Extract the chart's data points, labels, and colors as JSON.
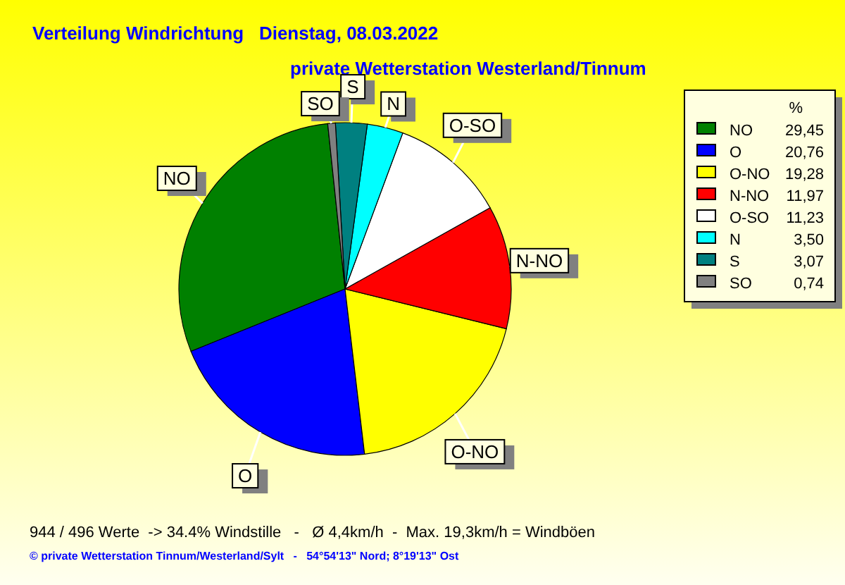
{
  "chart_data": {
    "type": "pie",
    "title": "Verteilung Windrichtung   Dienstag, 08.03.2022",
    "subtitle": "private Wetterstation Westerland/Tinnum",
    "categories": [
      "NO",
      "O",
      "O-NO",
      "N-NO",
      "O-SO",
      "N",
      "S",
      "SO"
    ],
    "values": [
      29.45,
      20.76,
      19.28,
      11.97,
      11.23,
      3.5,
      3.07,
      0.74
    ],
    "colors": [
      "#008000",
      "#0000ff",
      "#ffff00",
      "#ff0000",
      "#ffffff",
      "#00ffff",
      "#008080",
      "#808080"
    ],
    "value_labels": [
      "29,45",
      "20,76",
      "19,28",
      "11,97",
      "11,23",
      "3,50",
      "3,07",
      "0,74"
    ],
    "legend": "right",
    "legend_title": "%",
    "annotations": [
      "944 / 496 Werte  -> 34.4% Windstille   -   Ø 4,4km/h  -  Max. 19,3km/h = Windböen",
      "© private Wetterstation Tinnum/Westerland/Sylt   -   54°54'13\" Nord; 8°19'13\" Ost"
    ]
  }
}
